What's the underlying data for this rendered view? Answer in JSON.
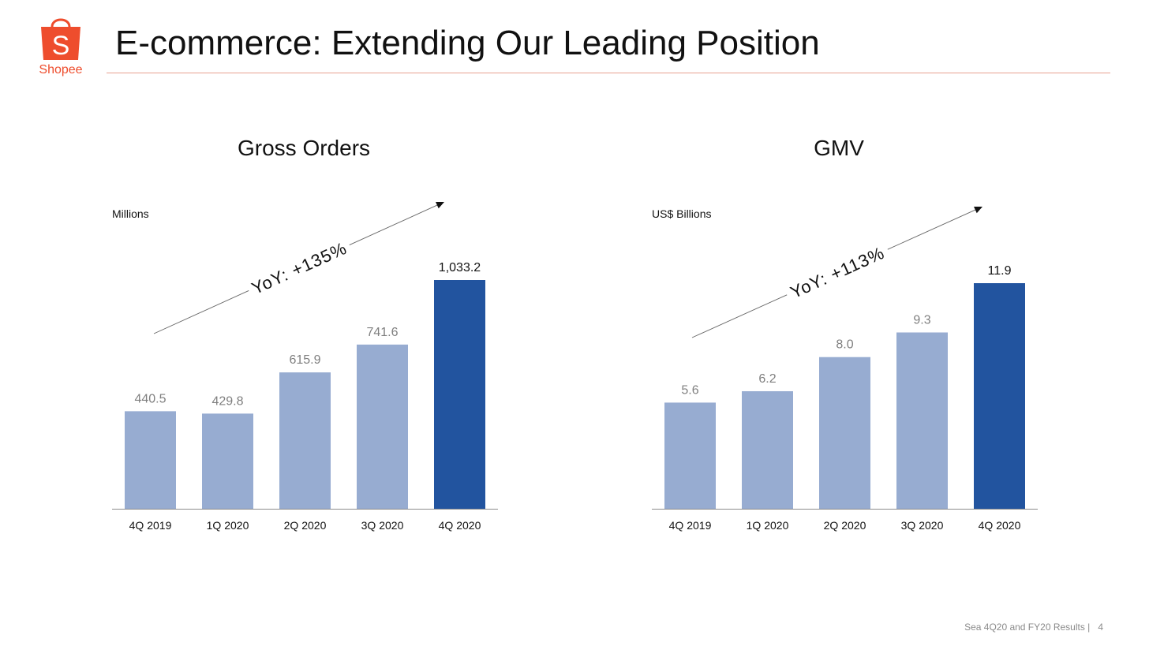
{
  "header": {
    "title": "E-commerce: Extending Our Leading Position",
    "logo_text": "Shopee",
    "logo_glyph": "S",
    "logo_icon": "shopping-bag-icon",
    "brand_color": "#ee4d2d"
  },
  "footer": {
    "text": "Sea 4Q20 and FY20 Results |",
    "page_number": "4"
  },
  "colors": {
    "bar_light": "#97acd1",
    "bar_dark": "#22549f",
    "label_light": "#7f7f7f",
    "label_dark": "#111111",
    "axis": "#8c8c8c"
  },
  "chart_data": [
    {
      "type": "bar",
      "title": "Gross Orders",
      "unit_label": "Millions",
      "categories": [
        "4Q 2019",
        "1Q 2020",
        "2Q 2020",
        "3Q 2020",
        "4Q 2020"
      ],
      "values": [
        440.5,
        429.8,
        615.9,
        741.6,
        1033.2
      ],
      "value_labels": [
        "440.5",
        "429.8",
        "615.9",
        "741.6",
        "1,033.2"
      ],
      "highlight_index": 4,
      "annotation": "YoY: +135%",
      "ylim": [
        0,
        1033.2
      ],
      "xlabel": "",
      "ylabel": ""
    },
    {
      "type": "bar",
      "title": "GMV",
      "unit_label": "US$ Billions",
      "categories": [
        "4Q 2019",
        "1Q 2020",
        "2Q 2020",
        "3Q 2020",
        "4Q 2020"
      ],
      "values": [
        5.6,
        6.2,
        8.0,
        9.3,
        11.9
      ],
      "value_labels": [
        "5.6",
        "6.2",
        "8.0",
        "9.3",
        "11.9"
      ],
      "highlight_index": 4,
      "annotation": "YoY: +113%",
      "ylim": [
        0,
        11.9
      ],
      "xlabel": "",
      "ylabel": ""
    }
  ]
}
